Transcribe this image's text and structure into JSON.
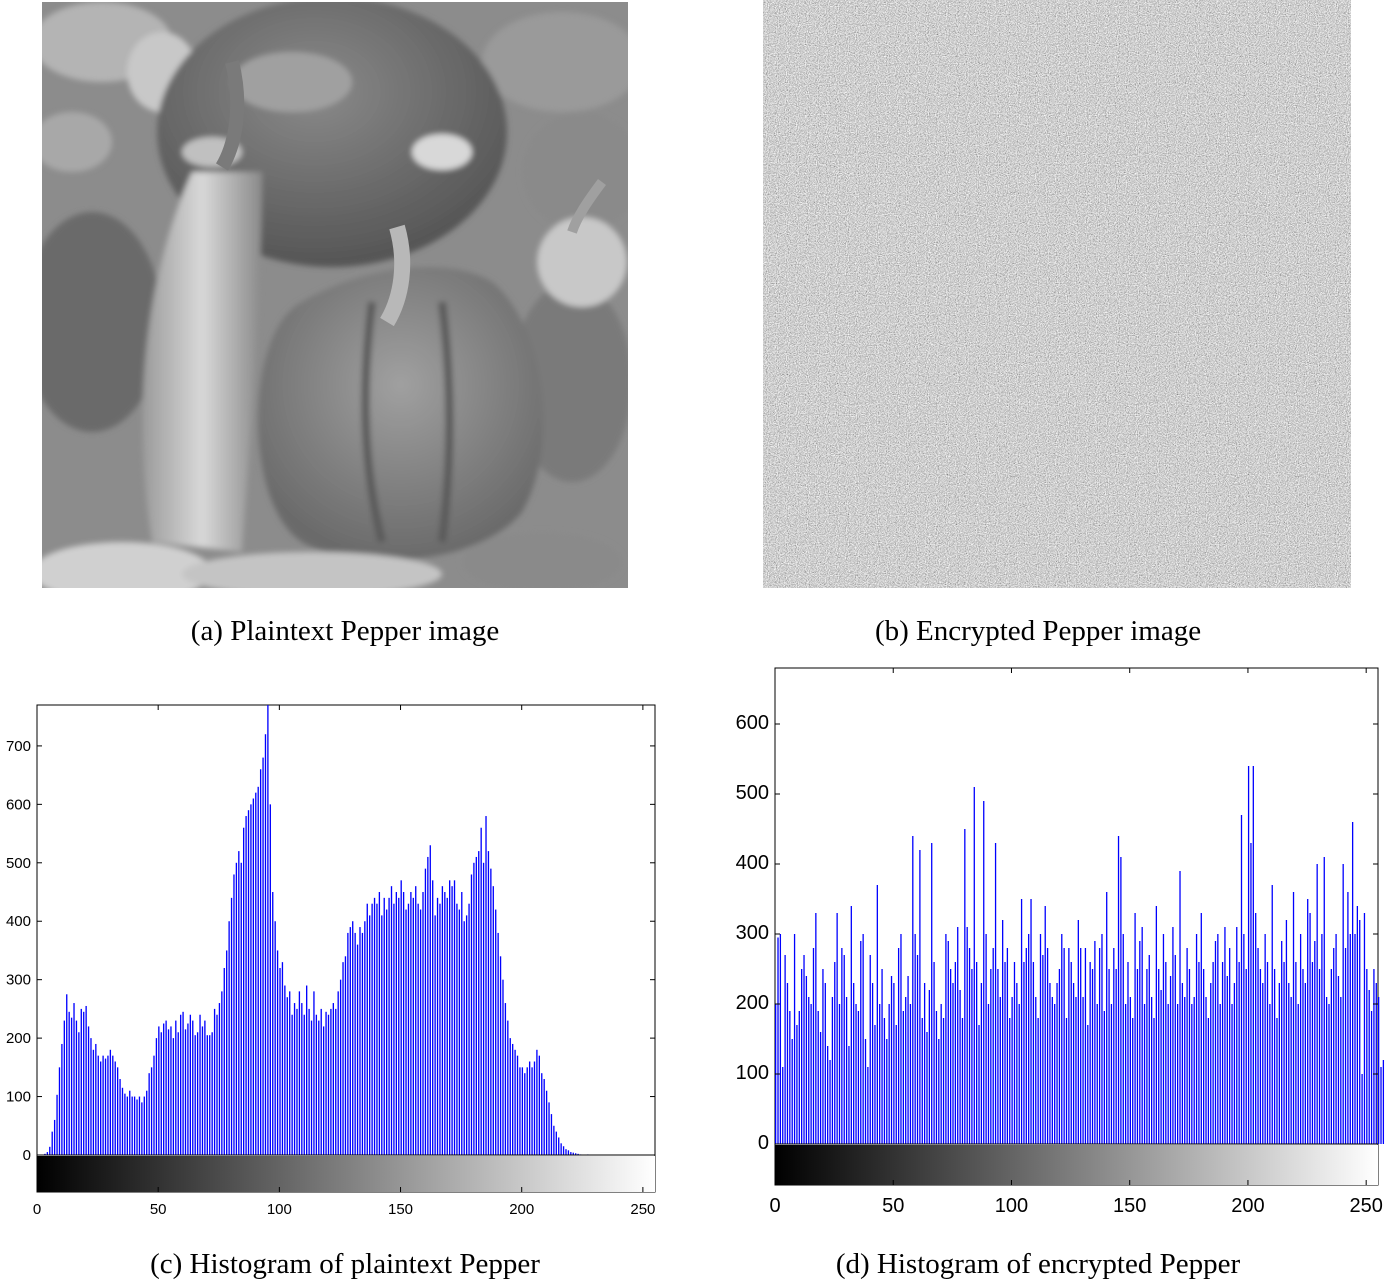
{
  "captions": {
    "a": "(a) Plaintext Pepper image",
    "b": "(b) Encrypted Pepper image",
    "c": "(c) Histogram of plaintext Pepper",
    "d": "(d) Histogram of encrypted Pepper"
  },
  "chart_data": [
    {
      "type": "bar",
      "title": "",
      "xlabel": "",
      "ylabel": "",
      "xlim": [
        0,
        255
      ],
      "ylim": [
        0,
        770
      ],
      "bar_color": "#0000ff",
      "grid": false,
      "xticks": [
        0,
        50,
        100,
        150,
        200,
        250
      ],
      "yticks": [
        0,
        100,
        200,
        300,
        400,
        500,
        600,
        700
      ],
      "x_start": 0,
      "values": [
        0,
        0,
        0,
        2,
        5,
        14,
        40,
        60,
        103,
        150,
        190,
        230,
        275,
        245,
        235,
        260,
        230,
        210,
        250,
        245,
        255,
        220,
        200,
        180,
        190,
        170,
        160,
        170,
        165,
        170,
        180,
        170,
        160,
        150,
        130,
        115,
        105,
        100,
        110,
        100,
        100,
        95,
        100,
        90,
        100,
        110,
        140,
        150,
        170,
        200,
        220,
        210,
        225,
        230,
        215,
        220,
        200,
        230,
        210,
        240,
        245,
        215,
        225,
        240,
        230,
        205,
        210,
        240,
        220,
        230,
        205,
        205,
        210,
        250,
        240,
        260,
        280,
        320,
        350,
        400,
        440,
        480,
        500,
        520,
        500,
        560,
        580,
        590,
        600,
        610,
        620,
        630,
        660,
        680,
        720,
        770,
        600,
        450,
        400,
        350,
        320,
        330,
        290,
        270,
        280,
        240,
        260,
        250,
        280,
        260,
        240,
        290,
        250,
        230,
        280,
        240,
        230,
        250,
        220,
        245,
        240,
        250,
        260,
        250,
        280,
        300,
        330,
        340,
        380,
        390,
        400,
        380,
        360,
        390,
        380,
        400,
        430,
        410,
        430,
        440,
        430,
        450,
        410,
        440,
        420,
        440,
        460,
        430,
        450,
        440,
        470,
        450,
        420,
        430,
        450,
        440,
        460,
        430,
        420,
        450,
        490,
        510,
        530,
        470,
        410,
        440,
        430,
        460,
        450,
        440,
        470,
        460,
        470,
        430,
        420,
        450,
        400,
        410,
        430,
        480,
        500,
        510,
        520,
        560,
        500,
        580,
        520,
        490,
        460,
        420,
        380,
        340,
        300,
        260,
        230,
        200,
        190,
        180,
        170,
        150,
        150,
        140,
        150,
        160,
        150,
        160,
        180,
        170,
        140,
        130,
        110,
        90,
        70,
        50,
        40,
        30,
        20,
        15,
        10,
        8,
        5,
        4,
        3,
        2,
        1,
        0,
        0,
        1,
        0,
        0,
        0,
        0,
        0,
        0,
        0,
        0,
        0,
        0,
        0,
        0,
        0,
        0,
        0,
        0,
        0,
        0,
        0,
        0,
        0,
        0,
        0,
        0,
        0,
        0,
        0,
        0,
        0,
        0,
        0,
        0,
        0
      ]
    },
    {
      "type": "bar",
      "title": "",
      "xlabel": "",
      "ylabel": "",
      "xlim": [
        0,
        255
      ],
      "ylim": [
        0,
        680
      ],
      "bar_color": "#0000ff",
      "grid": false,
      "xticks": [
        0,
        50,
        100,
        150,
        200,
        250
      ],
      "yticks": [
        0,
        100,
        200,
        300,
        400,
        500,
        600
      ],
      "x_start": 0,
      "values": [
        200,
        295,
        300,
        110,
        270,
        230,
        190,
        150,
        300,
        170,
        190,
        250,
        270,
        240,
        210,
        200,
        280,
        330,
        190,
        160,
        250,
        230,
        140,
        120,
        210,
        260,
        330,
        200,
        280,
        270,
        210,
        140,
        340,
        230,
        200,
        190,
        290,
        300,
        150,
        110,
        270,
        230,
        170,
        370,
        200,
        250,
        180,
        150,
        200,
        240,
        230,
        170,
        280,
        300,
        190,
        210,
        240,
        200,
        440,
        300,
        270,
        420,
        180,
        230,
        160,
        220,
        430,
        260,
        190,
        150,
        200,
        180,
        300,
        290,
        250,
        230,
        260,
        310,
        220,
        180,
        450,
        310,
        280,
        250,
        510,
        260,
        170,
        230,
        490,
        300,
        200,
        250,
        280,
        430,
        250,
        210,
        320,
        260,
        280,
        180,
        210,
        260,
        230,
        200,
        350,
        260,
        280,
        300,
        350,
        260,
        210,
        180,
        300,
        270,
        340,
        280,
        230,
        210,
        200,
        230,
        250,
        300,
        280,
        180,
        280,
        260,
        230,
        210,
        320,
        280,
        210,
        280,
        170,
        260,
        250,
        290,
        200,
        280,
        300,
        190,
        360,
        250,
        200,
        280,
        250,
        440,
        410,
        300,
        200,
        260,
        210,
        180,
        330,
        250,
        290,
        310,
        200,
        250,
        270,
        210,
        180,
        340,
        250,
        220,
        300,
        260,
        200,
        240,
        310,
        270,
        200,
        390,
        230,
        210,
        280,
        250,
        200,
        210,
        300,
        260,
        330,
        250,
        210,
        180,
        230,
        260,
        290,
        300,
        200,
        260,
        310,
        240,
        280,
        200,
        230,
        310,
        260,
        470,
        300,
        250,
        540,
        430,
        540,
        330,
        280,
        250,
        230,
        300,
        260,
        200,
        370,
        250,
        180,
        230,
        290,
        260,
        320,
        230,
        210,
        360,
        260,
        200,
        300,
        250,
        230,
        350,
        330,
        260,
        290,
        400,
        250,
        300,
        410,
        210,
        200,
        250,
        280,
        300,
        240,
        210,
        400,
        280,
        360,
        300,
        460,
        300,
        340,
        320,
        100,
        330,
        250,
        220,
        190,
        250,
        230,
        210,
        110,
        120
      ]
    }
  ]
}
